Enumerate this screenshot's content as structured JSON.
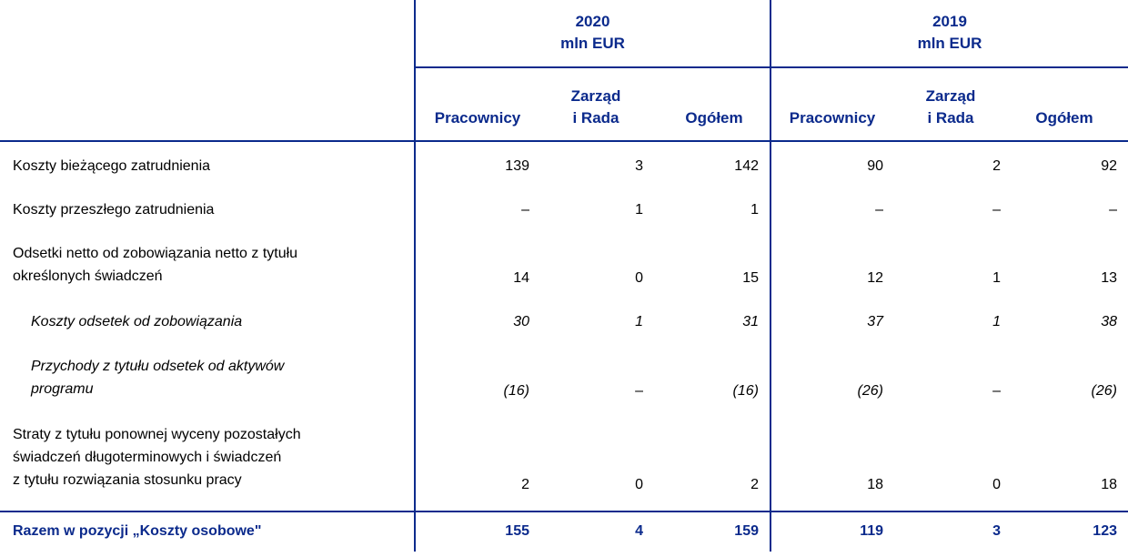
{
  "header": {
    "groups": [
      {
        "year": "2020",
        "unit": "mln EUR"
      },
      {
        "year": "2019",
        "unit": "mln EUR"
      }
    ],
    "columns": [
      {
        "line1": "",
        "line2": "Pracownicy"
      },
      {
        "line1": "Zarząd",
        "line2": "i Rada"
      },
      {
        "line1": "",
        "line2": "Ogółem"
      },
      {
        "line1": "",
        "line2": "Pracownicy"
      },
      {
        "line1": "Zarząd",
        "line2": "i Rada"
      },
      {
        "line1": "",
        "line2": "Ogółem"
      }
    ]
  },
  "rows": [
    {
      "label": "Koszty bieżącego zatrudnienia",
      "values": [
        "139",
        "3",
        "142",
        "90",
        "2",
        "92"
      ]
    },
    {
      "label": "Koszty przeszłego zatrudnienia",
      "values": [
        "–",
        "1",
        "1",
        "–",
        "–",
        "–"
      ]
    },
    {
      "label_line1": "Odsetki netto od zobowiązania netto z tytułu",
      "label_line2": "określonych świadczeń",
      "values": [
        "14",
        "0",
        "15",
        "12",
        "1",
        "13"
      ]
    },
    {
      "label": "Koszty odsetek od zobowiązania",
      "values": [
        "30",
        "1",
        "31",
        "37",
        "1",
        "38"
      ]
    },
    {
      "label_line1": "Przychody z tytułu odsetek od aktywów",
      "label_line2": "programu",
      "values": [
        "(16)",
        "–",
        "(16)",
        "(26)",
        "–",
        "(26)"
      ]
    },
    {
      "label_line1": "Straty z tytułu ponownej wyceny pozostałych",
      "label_line2": "świadczeń długoterminowych i świadczeń",
      "label_line3": "z tytułu rozwiązania stosunku pracy",
      "values": [
        "2",
        "0",
        "2",
        "18",
        "0",
        "18"
      ]
    },
    {
      "label": "Razem w pozycji „Koszty osobowe\"",
      "values": [
        "155",
        "4",
        "159",
        "119",
        "3",
        "123"
      ]
    }
  ]
}
